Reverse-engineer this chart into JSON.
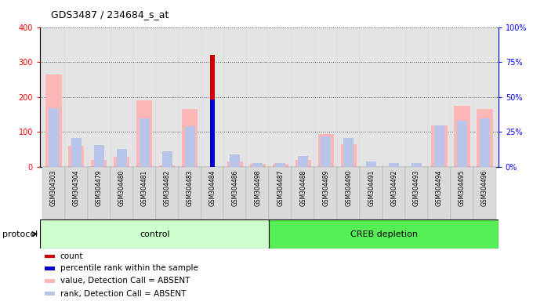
{
  "title": "GDS3487 / 234684_s_at",
  "samples": [
    "GSM304303",
    "GSM304304",
    "GSM304479",
    "GSM304480",
    "GSM304481",
    "GSM304482",
    "GSM304483",
    "GSM304484",
    "GSM304486",
    "GSM304498",
    "GSM304487",
    "GSM304488",
    "GSM304489",
    "GSM304490",
    "GSM304491",
    "GSM304492",
    "GSM304493",
    "GSM304494",
    "GSM304495",
    "GSM304496"
  ],
  "value_absent": [
    265,
    60,
    20,
    30,
    190,
    5,
    165,
    0,
    15,
    10,
    10,
    20,
    95,
    65,
    0,
    0,
    0,
    120,
    175,
    165
  ],
  "rank_absent": [
    42,
    21,
    16,
    13,
    35,
    11,
    29,
    0,
    9,
    3,
    3,
    8,
    22,
    21,
    4,
    3,
    3,
    30,
    33,
    35
  ],
  "count": [
    0,
    0,
    0,
    0,
    0,
    0,
    0,
    320,
    0,
    0,
    0,
    0,
    0,
    0,
    0,
    0,
    0,
    0,
    0,
    0
  ],
  "percentile_rank": [
    0,
    0,
    0,
    0,
    0,
    0,
    0,
    48,
    0,
    0,
    0,
    0,
    0,
    0,
    0,
    0,
    0,
    0,
    0,
    0
  ],
  "n_control": 10,
  "ylim_left": [
    0,
    400
  ],
  "ylim_right": [
    0,
    100
  ],
  "yticks_left": [
    0,
    100,
    200,
    300,
    400
  ],
  "ytick_labels_left": [
    "0",
    "100",
    "200",
    "300",
    "400"
  ],
  "yticks_right": [
    0,
    25,
    50,
    75,
    100
  ],
  "ytick_labels_right": [
    "0%",
    "25%",
    "50%",
    "75%",
    "100%"
  ],
  "color_value_absent": "#FFB6B6",
  "color_rank_absent": "#B8C4E8",
  "color_count": "#CC0000",
  "color_percentile": "#0000CC",
  "color_control_bg": "#CCFFCC",
  "color_creb_bg": "#55EE55",
  "color_plot_bg": "#E8E8E8",
  "protocol_label": "protocol",
  "control_label": "control",
  "creb_label": "CREB depletion"
}
